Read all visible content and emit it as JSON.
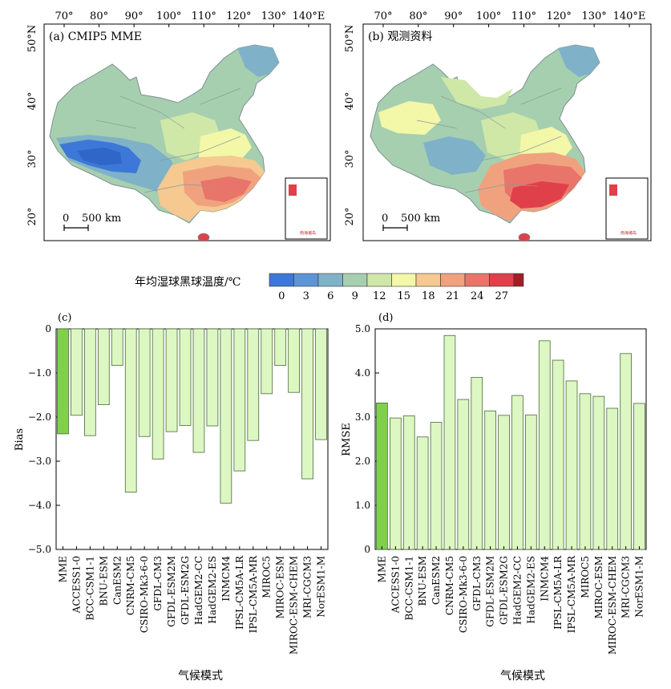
{
  "maps": [
    {
      "panel_label": "(a) CMIP5 MME",
      "lon_labels": [
        "70°",
        "80°",
        "90°",
        "100°",
        "110°",
        "120°",
        "130°",
        "140°E"
      ],
      "lat_labels": [
        "50°N",
        "40°",
        "30°",
        "20°"
      ],
      "scale_bar": {
        "zero": "0",
        "label": "500 km"
      },
      "inset_text": "南海诸岛"
    },
    {
      "panel_label": "(b) 观测资料",
      "lon_labels": [
        "70°",
        "80°",
        "90°",
        "100°",
        "110°",
        "120°",
        "130°",
        "140°E"
      ],
      "lat_labels": [
        "50°N",
        "40°",
        "30°",
        "20°"
      ],
      "scale_bar": {
        "zero": "0",
        "label": "500 km"
      },
      "inset_text": "南海诸岛"
    }
  ],
  "colorbar": {
    "title": "年均湿球黑球温度/℃",
    "ticks": [
      "0",
      "3",
      "6",
      "9",
      "12",
      "15",
      "18",
      "21",
      "24",
      "27"
    ],
    "colors": [
      "#3d78d8",
      "#5b95d8",
      "#7fb2c8",
      "#a6cfb0",
      "#cfe8a8",
      "#f3f7a8",
      "#f5c990",
      "#f0a27e",
      "#e9756a",
      "#e0404a",
      "#a01f24"
    ]
  },
  "chart_data": [
    {
      "type": "bar",
      "panel_label": "(c)",
      "ylabel": "Bias",
      "xlabel": "气候模式",
      "ylim": [
        -5.0,
        0
      ],
      "yticks": [
        "0",
        "−1.0",
        "−2.0",
        "−3.0",
        "−4.0",
        "−5.0"
      ],
      "categories": [
        "MME",
        "ACCESS1-0",
        "BCC-CSM1-1",
        "BNU-ESM",
        "CanESM2",
        "CNRM-CM5",
        "CSIRO-Mk3-6-0",
        "GFDL-CM3",
        "GFDL-ESM2M",
        "GFDL-ESM2G",
        "HadGEM2-CC",
        "HadGEM2-ES",
        "INMCM4",
        "IPSL-CM5A-LR",
        "IPSL-CM5A-MR",
        "MIROC5",
        "MIROC-ESM",
        "MIROC-ESM-CHEM",
        "MRI-CGCM3",
        "NorESM1-M"
      ],
      "values": [
        -2.38,
        -1.96,
        -2.42,
        -1.72,
        -0.83,
        -3.7,
        -2.44,
        -2.95,
        -2.33,
        -2.19,
        -2.8,
        -2.2,
        -3.95,
        -3.22,
        -2.53,
        -1.47,
        -0.83,
        -1.44,
        -3.4,
        -2.51
      ],
      "colors": {
        "mme": "#7fd04a",
        "model": "#dcf7c2",
        "edge": "#4a6a3a"
      }
    },
    {
      "type": "bar",
      "panel_label": "(d)",
      "ylabel": "RMSE",
      "xlabel": "气候模式",
      "ylim": [
        0,
        5.0
      ],
      "yticks": [
        "0",
        "1.0",
        "2.0",
        "3.0",
        "4.0",
        "5.0"
      ],
      "categories": [
        "MME",
        "ACCESS1-0",
        "BCC-CSM1-1",
        "BNU-ESM",
        "CanESM2",
        "CNRM-CM5",
        "CSIRO-Mk3-6-0",
        "GFDL-CM3",
        "GFDL-ESM2M",
        "GFDL-ESM2G",
        "HadGEM2-CC",
        "HadGEM2-ES",
        "INMCM4",
        "IPSL-CM5A-LR",
        "IPSL-CM5A-MR",
        "MIROC5",
        "MIROC-ESM",
        "MIROC-ESM-CHEM",
        "MRI-CGCM3",
        "NorESM1-M"
      ],
      "values": [
        3.32,
        2.98,
        3.03,
        2.55,
        2.88,
        4.85,
        3.4,
        3.9,
        3.14,
        3.04,
        3.49,
        3.05,
        4.73,
        4.29,
        3.82,
        3.53,
        3.47,
        3.2,
        4.44,
        3.31
      ],
      "colors": {
        "mme": "#7fd04a",
        "model": "#dcf7c2",
        "edge": "#4a6a3a"
      }
    }
  ]
}
